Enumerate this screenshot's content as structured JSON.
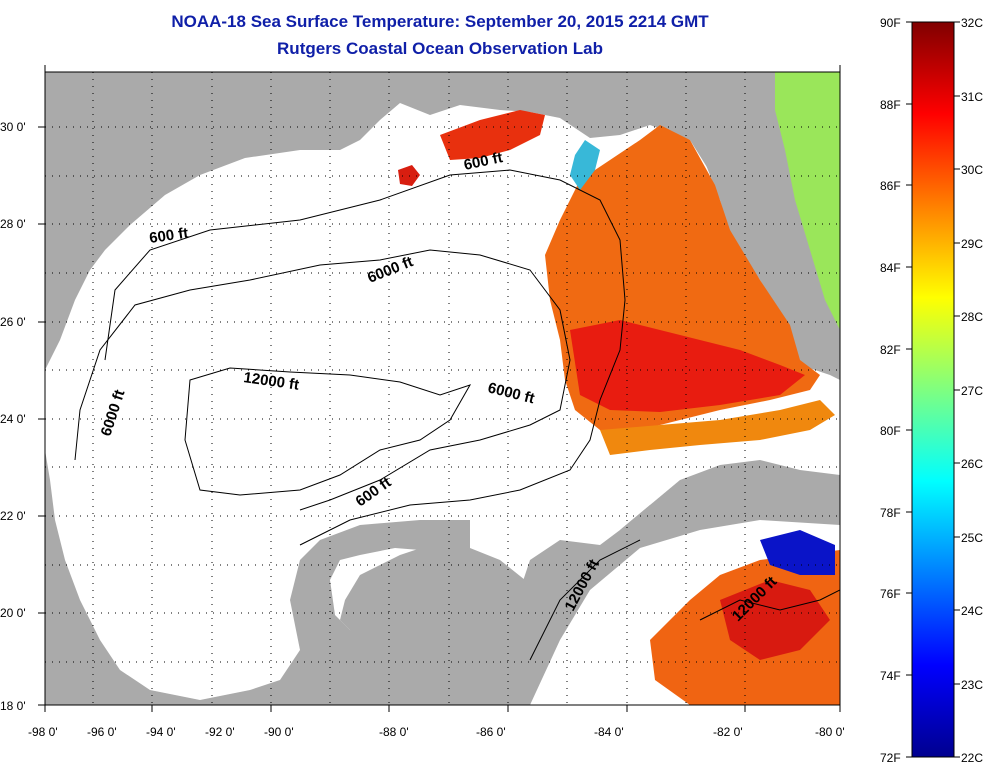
{
  "title": "NOAA-18 Sea Surface Temperature:  September 20, 2015 2214 GMT",
  "subtitle": "Rutgers Coastal Ocean Observation Lab",
  "map": {
    "lon_range": [
      -98,
      -80
    ],
    "lat_range": [
      18,
      31
    ],
    "lon_ticks": [
      "-98 0'",
      "-96 0'",
      "-94 0'",
      "-92 0'",
      "-90 0'",
      "-88 0'",
      "-86 0'",
      "-84 0'",
      "-82 0'",
      "-80 0'"
    ],
    "lat_ticks": [
      "18 0'",
      "20 0'",
      "22 0'",
      "24 0'",
      "26 0'",
      "28 0'",
      "30 0'"
    ],
    "grid": "dotted",
    "land_color": "#aaaaaa",
    "no_data_color": "#ffffff",
    "contour_labels": [
      "600 ft",
      "6000 ft",
      "12000 ft",
      "6000 ft",
      "6000 ft",
      "600 ft",
      "600 ft",
      "12000 ft",
      "12000 ft"
    ]
  },
  "colorbar": {
    "f_labels": [
      "90F",
      "88F",
      "86F",
      "84F",
      "82F",
      "80F",
      "78F",
      "76F",
      "74F",
      "72F"
    ],
    "c_labels": [
      "32C",
      "31C",
      "30C",
      "29C",
      "28C",
      "27C",
      "26C",
      "25C",
      "24C",
      "23C",
      "22C"
    ],
    "colormap": "jet",
    "range_c": [
      22,
      32
    ]
  }
}
